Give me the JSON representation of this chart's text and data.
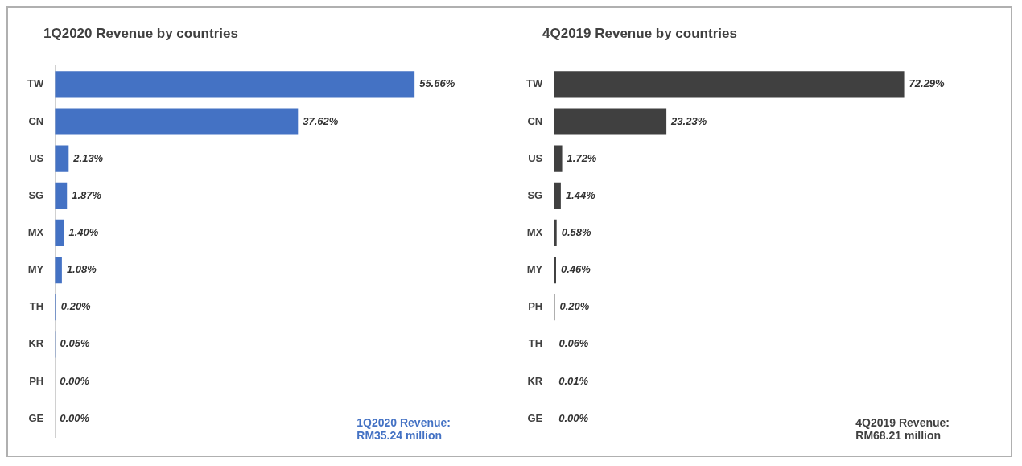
{
  "chart_data": [
    {
      "type": "bar",
      "orientation": "horizontal",
      "title": "1Q2020 Revenue by countries",
      "categories": [
        "TW",
        "CN",
        "US",
        "SG",
        "MX",
        "MY",
        "TH",
        "KR",
        "PH",
        "GE"
      ],
      "series": [
        {
          "color": "#4472c4",
          "values": [
            55.66,
            37.62,
            2.13,
            1.87,
            1.4,
            1.08,
            0.2,
            0.05,
            0.0,
            0.0
          ],
          "value_labels": [
            "55.66%",
            "37.62%",
            "2.13%",
            "1.87%",
            "1.40%",
            "1.08%",
            "0.20%",
            "0.05%",
            "0.00%",
            "0.00%"
          ]
        }
      ],
      "annotations": [
        "1Q2020 Revenue:\nRM35.24 million"
      ]
    },
    {
      "type": "bar",
      "orientation": "horizontal",
      "title": "4Q2019 Revenue by countries",
      "categories": [
        "TW",
        "CN",
        "US",
        "SG",
        "MX",
        "MY",
        "PH",
        "TH",
        "KR",
        "GE"
      ],
      "series": [
        {
          "color": "#404040",
          "values": [
            72.29,
            23.23,
            1.72,
            1.44,
            0.58,
            0.46,
            0.2,
            0.06,
            0.01,
            0.0
          ],
          "value_labels": [
            "72.29%",
            "23.23%",
            "1.72%",
            "1.44%",
            "0.58%",
            "0.46%",
            "0.20%",
            "0.06%",
            "0.01%",
            "0.00%"
          ]
        }
      ],
      "annotations": [
        "4Q2019 Revenue:\nRM68.21 million"
      ]
    }
  ]
}
